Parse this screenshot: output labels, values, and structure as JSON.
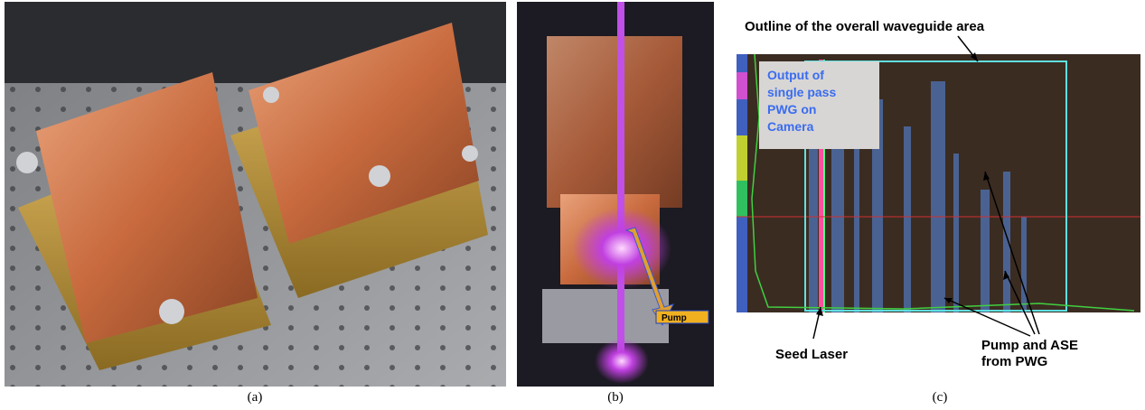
{
  "panels": [
    {
      "caption": "(a)"
    },
    {
      "caption": "(b)",
      "annotations": {
        "pump": "Pump"
      }
    },
    {
      "caption": "(c)",
      "annotations": {
        "outline": "Outline of the overall waveguide area",
        "output": [
          "Output of",
          "single pass",
          "PWG on",
          "Camera"
        ],
        "seed": "Seed Laser",
        "pump_ase": [
          "Pump and ASE",
          "from PWG"
        ]
      }
    }
  ]
}
